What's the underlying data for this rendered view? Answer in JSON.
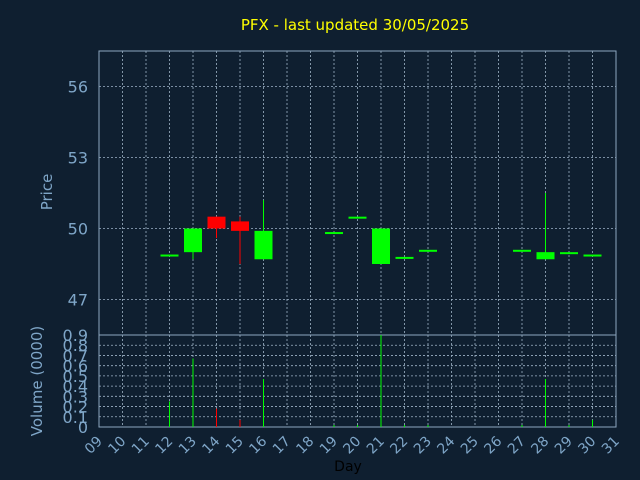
{
  "chart_data": [
    {
      "type": "candlestick",
      "title": "PFX - last updated 30/05/2025",
      "ylabel": "Price",
      "ylim": [
        45.5,
        57.5
      ],
      "yticks": [
        47,
        50,
        53,
        56
      ],
      "grid": true,
      "colors": {
        "up": "#00ff00",
        "down": "#ff0000",
        "background": "#0f1f30",
        "title": "#ffff00",
        "axis_text": "#7fa6c8"
      },
      "x_range": [
        9,
        31
      ],
      "candles": [
        {
          "day": 12,
          "open": 48.9,
          "high": 48.9,
          "low": 48.9,
          "close": 48.9
        },
        {
          "day": 13,
          "open": 49.0,
          "high": 50.0,
          "low": 48.7,
          "close": 50.0
        },
        {
          "day": 14,
          "open": 50.5,
          "high": 50.5,
          "low": 49.6,
          "close": 50.0
        },
        {
          "day": 15,
          "open": 50.3,
          "high": 50.5,
          "low": 48.5,
          "close": 49.9
        },
        {
          "day": 16,
          "open": 48.7,
          "high": 51.2,
          "low": 48.7,
          "close": 49.9
        },
        {
          "day": 19,
          "open": 49.85,
          "high": 49.85,
          "low": 49.85,
          "close": 49.85
        },
        {
          "day": 20,
          "open": 50.5,
          "high": 50.5,
          "low": 50.5,
          "close": 50.5
        },
        {
          "day": 21,
          "open": 48.5,
          "high": 50.0,
          "low": 48.5,
          "close": 50.0
        },
        {
          "day": 22,
          "open": 48.8,
          "high": 48.8,
          "low": 48.8,
          "close": 48.8
        },
        {
          "day": 23,
          "open": 49.1,
          "high": 49.1,
          "low": 49.1,
          "close": 49.1
        },
        {
          "day": 27,
          "open": 49.1,
          "high": 49.1,
          "low": 49.1,
          "close": 49.1
        },
        {
          "day": 28,
          "open": 48.7,
          "high": 51.5,
          "low": 48.7,
          "close": 49.0
        },
        {
          "day": 29,
          "open": 49.0,
          "high": 49.0,
          "low": 49.0,
          "close": 49.0
        },
        {
          "day": 30,
          "open": 48.9,
          "high": 48.9,
          "low": 48.9,
          "close": 48.9
        }
      ]
    },
    {
      "type": "bar",
      "ylabel": "Volume (0000)",
      "xlabel": "Day",
      "ylim": [
        0,
        0.9
      ],
      "yticks": [
        0,
        0.1,
        0.2,
        0.3,
        0.4,
        0.5,
        0.6,
        0.7,
        0.8,
        0.9
      ],
      "ytick_labels": [
        "0",
        "0.1",
        "0.2",
        "0.3",
        "0.4",
        "0.5",
        "0.6",
        "0.7",
        "0.8",
        "0.9"
      ],
      "categories": [
        "09",
        "10",
        "11",
        "12",
        "13",
        "14",
        "15",
        "16",
        "17",
        "18",
        "19",
        "20",
        "21",
        "22",
        "23",
        "24",
        "25",
        "26",
        "27",
        "28",
        "29",
        "30",
        "31"
      ],
      "bars": [
        {
          "day": 12,
          "value": 0.25,
          "direction": "up"
        },
        {
          "day": 13,
          "value": 0.67,
          "direction": "up"
        },
        {
          "day": 14,
          "value": 0.18,
          "direction": "down"
        },
        {
          "day": 15,
          "value": 0.07,
          "direction": "down"
        },
        {
          "day": 16,
          "value": 0.47,
          "direction": "up"
        },
        {
          "day": 19,
          "value": 0.02,
          "direction": "up"
        },
        {
          "day": 20,
          "value": 0.02,
          "direction": "up"
        },
        {
          "day": 21,
          "value": 0.9,
          "direction": "up"
        },
        {
          "day": 22,
          "value": 0.02,
          "direction": "up"
        },
        {
          "day": 23,
          "value": 0.02,
          "direction": "up"
        },
        {
          "day": 27,
          "value": 0.02,
          "direction": "up"
        },
        {
          "day": 28,
          "value": 0.47,
          "direction": "up"
        },
        {
          "day": 29,
          "value": 0.02,
          "direction": "up"
        },
        {
          "day": 30,
          "value": 0.07,
          "direction": "up"
        }
      ]
    }
  ]
}
